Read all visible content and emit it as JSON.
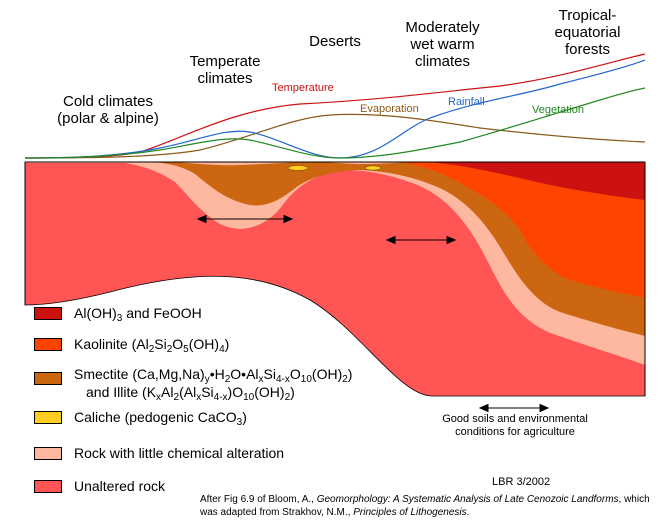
{
  "zones": {
    "cold": "Cold climates\n(polar & alpine)",
    "temperate": "Temperate\nclimates",
    "deserts": "Deserts",
    "moderate": "Moderately\nwet warm\nclimates",
    "tropical": "Tropical-\nequatorial\nforests"
  },
  "curves": {
    "temperature": "Temperature",
    "evaporation": "Evaporation",
    "rainfall": "Rainfall",
    "vegetation": "Vegetation"
  },
  "colors": {
    "temperature": "#cc1111",
    "evaporation": "#8b5a1a",
    "rainfall": "#2266cc",
    "vegetation": "#228822",
    "aloh": "#cc1111",
    "kaolinite": "#ff4400",
    "smectite": "#cc6611",
    "caliche": "#ffcc22",
    "altered_rock": "#ffb8a0",
    "unaltered": "#ff5555"
  },
  "legend": {
    "aloh": {
      "prefix": "Al(OH)",
      "sub": "3",
      "suffix": " and FeOOH"
    },
    "kaolinite": {
      "prefix": "Kaolinite (Al",
      "sub1": "2",
      "mid1": "Si",
      "sub2": "2",
      "mid2": "O",
      "sub3": "5",
      "mid3": "(OH)",
      "sub4": "4",
      "suffix": ")"
    },
    "smectite_line1": {
      "t1": "Smectite (Ca,Mg,Na)",
      "s1": "y",
      "t2": "•H",
      "s2": "2",
      "t3": "O•Al",
      "s3": "x",
      "t4": "Si",
      "s4": "4-x",
      "t5": "O",
      "s5": "10",
      "t6": "(OH)",
      "s6": "2",
      "t7": ")"
    },
    "smectite_line2": {
      "t1": "and Illite (K",
      "s1": "x",
      "t2": "Al",
      "s2": "2",
      "t3": "(Al",
      "s3": "x",
      "t4": "Si",
      "s4": "4-x",
      "t5": ")O",
      "s5": "10",
      "t6": "(OH)",
      "s6": "2",
      "t7": ")"
    },
    "caliche": {
      "prefix": "Caliche (pedogenic CaCO",
      "sub": "3",
      "suffix": ")"
    },
    "altered_rock": "Rock with little chemical alteration",
    "unaltered": "Unaltered rock"
  },
  "note": "Good soils and environmental\nconditions for agriculture",
  "author": "LBR 3/2002",
  "credit": {
    "a": "After Fig 6.9 of Bloom, A., ",
    "b": "Geomorphology: A Systematic Analysis of Late Cenozoic Landforms",
    "c": ", which was adapted from Strakhov, N.M., ",
    "d": "Principles of Lithogenesis",
    "e": "."
  }
}
